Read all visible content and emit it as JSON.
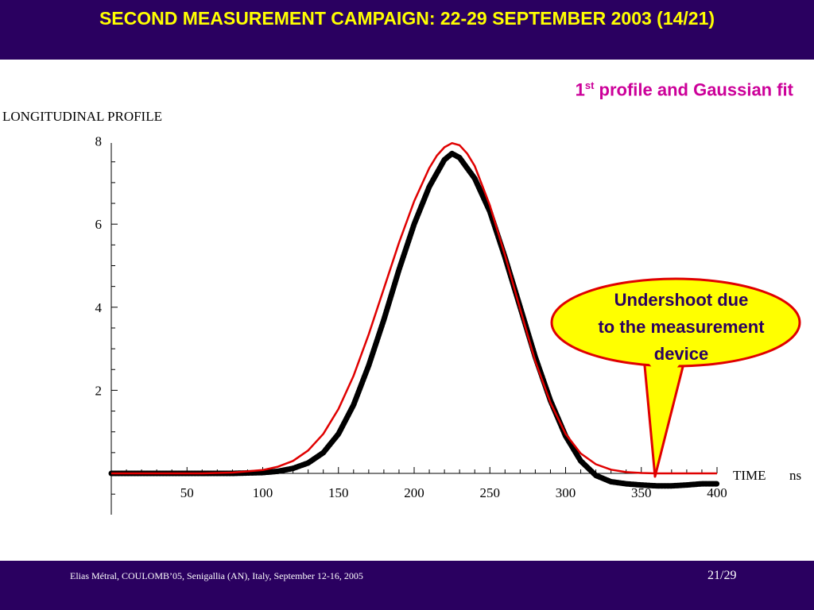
{
  "slide": {
    "title": "SECOND MEASUREMENT CAMPAIGN: 22-29 SEPTEMBER 2003 (14/21)",
    "subtitle_main": "1",
    "subtitle_sup": "st",
    "subtitle_rest": " profile and Gaussian fit",
    "footer": "Elias Métral, COULOMB’05, Senigallia (AN), Italy, September 12-16, 2005",
    "page": "21/29"
  },
  "colors": {
    "header_bg": "#2a0060",
    "title": "#ffff00",
    "subtitle": "#cc0099",
    "measured": "#000000",
    "fit": "#e00000",
    "callout_fill": "#ffff00",
    "callout_border": "#e00000"
  },
  "callout": {
    "lines": [
      "Undershoot due",
      "to the measurement",
      "device"
    ]
  },
  "chart_data": {
    "type": "line",
    "ylabel": "LONGITUDINAL  PROFILE",
    "xlabel": "TIME",
    "xunit": "ns",
    "xlim": [
      0,
      400
    ],
    "ylim": [
      -1,
      8
    ],
    "xticks": [
      50,
      100,
      150,
      200,
      250,
      300,
      350,
      400
    ],
    "yticks": [
      2,
      4,
      6,
      8
    ],
    "grid": false,
    "series": [
      {
        "style": "thick black measured points",
        "x": [
          0,
          20,
          40,
          60,
          80,
          100,
          110,
          120,
          130,
          140,
          150,
          160,
          170,
          180,
          190,
          200,
          210,
          220,
          225,
          230,
          240,
          250,
          260,
          270,
          280,
          290,
          300,
          310,
          320,
          330,
          340,
          350,
          360,
          370,
          380,
          390,
          400
        ],
        "y": [
          0.0,
          0.0,
          0.0,
          0.0,
          0.0,
          0.02,
          0.05,
          0.12,
          0.25,
          0.5,
          0.95,
          1.65,
          2.6,
          3.7,
          4.9,
          6.0,
          6.9,
          7.55,
          7.7,
          7.6,
          7.1,
          6.3,
          5.2,
          4.0,
          2.8,
          1.75,
          0.9,
          0.3,
          -0.05,
          -0.2,
          -0.25,
          -0.28,
          -0.3,
          -0.3,
          -0.28,
          -0.25,
          -0.25
        ]
      },
      {
        "style": "red Gaussian fit",
        "x": [
          0,
          20,
          40,
          60,
          80,
          100,
          110,
          120,
          130,
          140,
          150,
          160,
          170,
          180,
          190,
          200,
          210,
          215,
          220,
          225,
          230,
          235,
          240,
          250,
          260,
          270,
          280,
          290,
          300,
          310,
          320,
          330,
          340,
          350,
          360,
          370,
          380,
          390,
          400
        ],
        "y": [
          0.0,
          0.0,
          0.0,
          0.0,
          0.02,
          0.08,
          0.16,
          0.3,
          0.55,
          0.95,
          1.55,
          2.35,
          3.35,
          4.45,
          5.55,
          6.55,
          7.35,
          7.65,
          7.85,
          7.95,
          7.9,
          7.7,
          7.4,
          6.45,
          5.25,
          3.95,
          2.7,
          1.7,
          0.95,
          0.48,
          0.22,
          0.09,
          0.03,
          0.01,
          0.0,
          0.0,
          0.0,
          0.0,
          0.0
        ]
      }
    ]
  }
}
